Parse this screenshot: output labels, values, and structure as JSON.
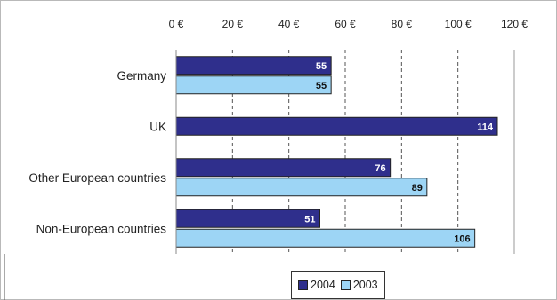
{
  "chart_data": {
    "type": "bar",
    "orientation": "horizontal",
    "categories": [
      "Germany",
      "UK",
      "Other European countries",
      "Non-European countries"
    ],
    "series": [
      {
        "name": "2004",
        "color": "#2f2f8c",
        "values": [
          55,
          114,
          76,
          51
        ]
      },
      {
        "name": "2003",
        "color": "#9dd5f5",
        "values": [
          55,
          null,
          89,
          106
        ]
      }
    ],
    "xlim": [
      0,
      120
    ],
    "xticks": [
      0,
      20,
      40,
      60,
      80,
      100,
      120
    ],
    "xtick_labels": [
      "0 €",
      "20 €",
      "40 €",
      "60 €",
      "80 €",
      "100 €",
      "120 €"
    ],
    "xaxis_position": "top",
    "grid": "vertical dashed",
    "legend_position": "bottom-center",
    "title": "",
    "xlabel": "",
    "ylabel": ""
  }
}
